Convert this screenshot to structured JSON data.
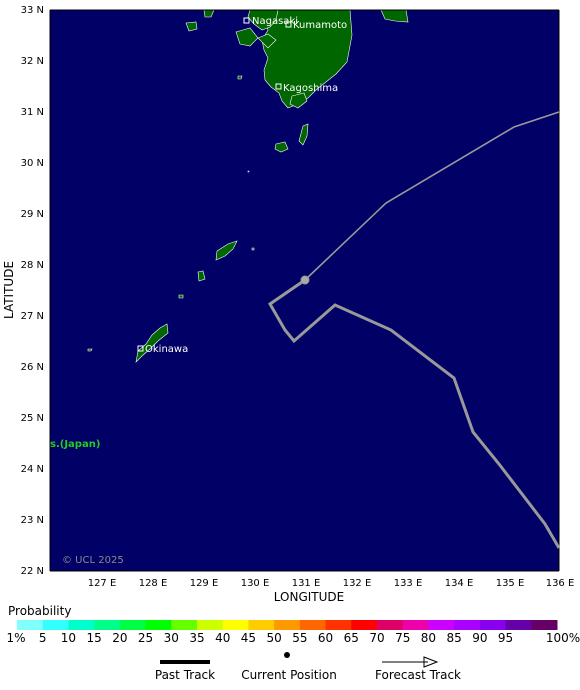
{
  "map": {
    "lat_labels": [
      "33 N",
      "32 N",
      "31 N",
      "30 N",
      "29 N",
      "28 N",
      "27 N",
      "26 N",
      "25 N",
      "24 N",
      "23 N",
      "22 N"
    ],
    "lon_labels": [
      "127 E",
      "128 E",
      "129 E",
      "130 E",
      "131 E",
      "132 E",
      "133 E",
      "134 E",
      "135 E",
      "136 E"
    ],
    "x_title": "LONGITUDE",
    "y_title": "LATITUDE",
    "ocean_color": "#000066",
    "land_color": "#006600",
    "track_color": "#999999",
    "cities": [
      {
        "name": "Nagasaki"
      },
      {
        "name": "Kumamoto"
      },
      {
        "name": "Kagoshima"
      },
      {
        "name": "Okinawa"
      }
    ],
    "region_label": "s.(Japan)",
    "copyright": "© UCL 2025"
  },
  "probability": {
    "title": "Probability",
    "labels": [
      "1%",
      "5",
      "10",
      "15",
      "20",
      "25",
      "30",
      "35",
      "40",
      "45",
      "50",
      "55",
      "60",
      "65",
      "70",
      "75",
      "80",
      "85",
      "90",
      "95",
      "100%"
    ],
    "colors": [
      "#80ffff",
      "#33ffff",
      "#00ffcc",
      "#00ff88",
      "#00ff44",
      "#00ff00",
      "#66ff00",
      "#ccff00",
      "#ffff00",
      "#ffcc00",
      "#ff9900",
      "#ff6600",
      "#ff3300",
      "#ff0000",
      "#dd0066",
      "#ee00aa",
      "#cc00ff",
      "#aa00ff",
      "#8800ee",
      "#6600aa",
      "#660066"
    ]
  },
  "legend": {
    "past_track": "Past Track",
    "current_position": "Current Position",
    "forecast_track": "Forecast Track"
  }
}
